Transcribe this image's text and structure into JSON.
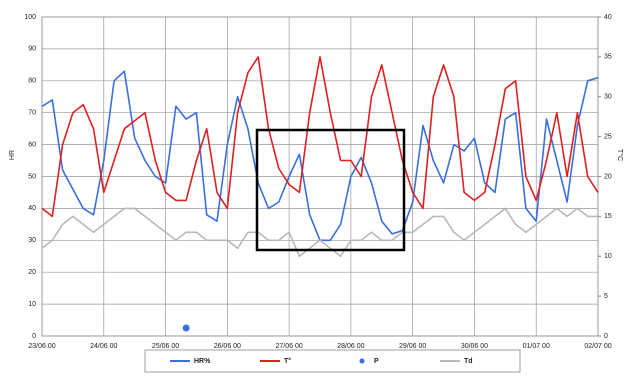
{
  "chart_data": {
    "type": "line",
    "y_label": "HR",
    "y2_label": "T°C",
    "x": [
      "23/06 00",
      "23/06 04",
      "23/06 08",
      "23/06 12",
      "23/06 16",
      "23/06 20",
      "24/06 00",
      "24/06 04",
      "24/06 08",
      "24/06 12",
      "24/06 16",
      "24/06 20",
      "25/06 00",
      "25/06 04",
      "25/06 08",
      "25/06 12",
      "25/06 16",
      "25/06 20",
      "26/06 00",
      "26/06 04",
      "26/06 08",
      "26/06 12",
      "26/06 16",
      "26/06 20",
      "27/06 00",
      "27/06 04",
      "27/06 08",
      "27/06 12",
      "27/06 16",
      "27/06 20",
      "28/06 00",
      "28/06 04",
      "28/06 08",
      "28/06 12",
      "28/06 16",
      "28/06 20",
      "29/06 00",
      "29/06 04",
      "29/06 08",
      "29/06 12",
      "29/06 16",
      "29/06 20",
      "30/06 00",
      "30/06 04",
      "30/06 08",
      "30/06 12",
      "30/06 16",
      "30/06 20",
      "01/07 00",
      "01/07 04",
      "01/07 08",
      "01/07 12",
      "01/07 16",
      "01/07 20",
      "02/07 00"
    ],
    "series": [
      {
        "name": "HR%",
        "color": "#3a6fe0",
        "axis": "y",
        "style": "line",
        "values": [
          72,
          74,
          52,
          46,
          40,
          38,
          55,
          80,
          83,
          62,
          55,
          50,
          48,
          72,
          68,
          70,
          38,
          36,
          60,
          75,
          65,
          48,
          40,
          42,
          50,
          57,
          38,
          30,
          30,
          35,
          50,
          56,
          48,
          36,
          32,
          33,
          42,
          66,
          55,
          48,
          60,
          58,
          62,
          48,
          45,
          68,
          70,
          40,
          36,
          68,
          55,
          42,
          66,
          80,
          81
        ]
      },
      {
        "name": "T°",
        "color": "#e02020",
        "axis": "y2",
        "style": "line",
        "values": [
          16,
          15,
          24,
          28,
          29,
          26,
          18,
          22,
          26,
          27,
          28,
          22,
          18,
          17,
          17,
          22,
          26,
          18,
          16,
          28,
          33,
          35,
          26,
          21,
          19,
          18,
          28,
          35,
          28,
          22,
          22,
          20,
          30,
          34,
          28,
          22,
          18,
          16,
          30,
          34,
          30,
          18,
          17,
          18,
          24,
          31,
          32,
          20,
          17,
          22,
          28,
          20,
          28,
          20,
          18
        ]
      },
      {
        "name": "P",
        "color": "#3a6fe0",
        "axis": "y2",
        "style": "dot",
        "values": [
          null,
          null,
          null,
          null,
          null,
          null,
          null,
          null,
          null,
          null,
          null,
          null,
          null,
          null,
          1,
          null,
          null,
          null,
          null,
          null,
          null,
          null,
          null,
          null,
          null,
          null,
          null,
          null,
          null,
          null,
          null,
          null,
          null,
          null,
          null,
          null,
          null,
          null,
          null,
          null,
          null,
          null,
          null,
          null,
          null,
          null,
          null,
          null,
          null,
          null,
          null,
          null,
          null,
          null,
          null
        ]
      },
      {
        "name": "Td",
        "color": "#b8b8b8",
        "axis": "y2",
        "style": "line",
        "values": [
          11,
          12,
          14,
          15,
          14,
          13,
          14,
          15,
          16,
          16,
          15,
          14,
          13,
          12,
          13,
          13,
          12,
          12,
          12,
          11,
          13,
          13,
          12,
          12,
          13,
          10,
          11,
          12,
          11,
          10,
          12,
          12,
          13,
          12,
          12,
          13,
          13,
          14,
          15,
          15,
          13,
          12,
          13,
          14,
          15,
          16,
          14,
          13,
          14,
          15,
          16,
          15,
          16,
          15,
          15
        ]
      }
    ],
    "ylim": [
      0,
      100
    ],
    "yticks": [
      0,
      10,
      20,
      30,
      40,
      50,
      60,
      70,
      80,
      90,
      100
    ],
    "y2lim": [
      0,
      40
    ],
    "y2ticks": [
      0,
      5,
      10,
      15,
      20,
      25,
      30,
      35,
      40
    ],
    "grid": true,
    "legend": "bottom"
  }
}
